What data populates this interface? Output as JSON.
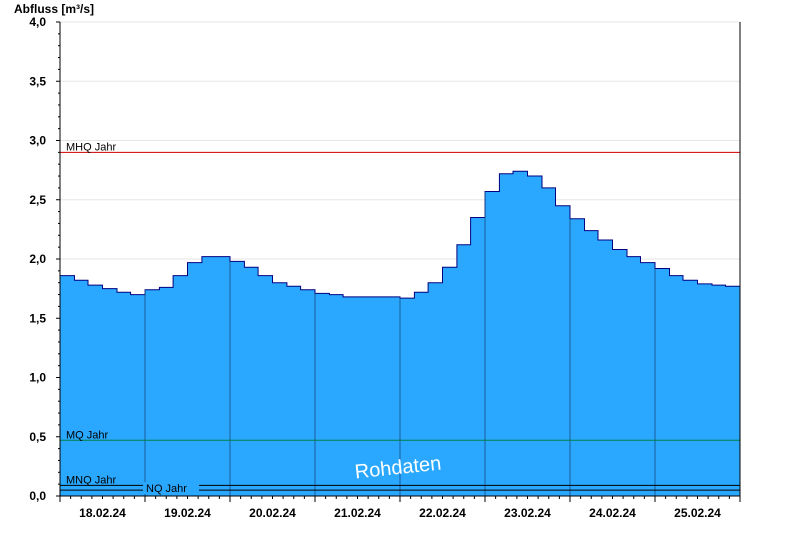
{
  "chart_data": {
    "type": "area",
    "ylabel": "Abfluss [m³/s]",
    "ylim": [
      0,
      4.0
    ],
    "yticks": [
      "0,0",
      "0,5",
      "1,0",
      "1,5",
      "2,0",
      "2,5",
      "3,0",
      "3,5",
      "4,0"
    ],
    "xlim": [
      0,
      8
    ],
    "xtick_labels": [
      "18.02.24",
      "19.02.24",
      "20.02.24",
      "21.02.24",
      "22.02.24",
      "23.02.24",
      "24.02.24",
      "25.02.24"
    ],
    "grid": true,
    "series": [
      {
        "color": "#2aa8ff",
        "x": [
          0,
          0.17,
          0.33,
          0.5,
          0.67,
          0.83,
          1.0,
          1.17,
          1.33,
          1.5,
          1.67,
          1.83,
          2.0,
          2.17,
          2.33,
          2.5,
          2.67,
          2.83,
          3.0,
          3.17,
          3.33,
          3.5,
          3.67,
          3.83,
          4.0,
          4.17,
          4.33,
          4.5,
          4.67,
          4.83,
          5.0,
          5.17,
          5.33,
          5.5,
          5.67,
          5.83,
          6.0,
          6.17,
          6.33,
          6.5,
          6.67,
          6.83,
          7.0,
          7.17,
          7.33,
          7.5,
          7.67,
          7.83,
          8.0
        ],
        "y": [
          1.86,
          1.82,
          1.78,
          1.75,
          1.72,
          1.7,
          1.74,
          1.76,
          1.86,
          1.97,
          2.02,
          2.02,
          1.98,
          1.93,
          1.86,
          1.8,
          1.77,
          1.74,
          1.71,
          1.7,
          1.68,
          1.68,
          1.68,
          1.68,
          1.67,
          1.72,
          1.8,
          1.93,
          2.12,
          2.35,
          2.57,
          2.72,
          2.74,
          2.7,
          2.6,
          2.45,
          2.34,
          2.24,
          2.16,
          2.08,
          2.02,
          1.97,
          1.92,
          1.86,
          1.82,
          1.79,
          1.78,
          1.77,
          1.75
        ]
      }
    ],
    "reference_lines": [
      {
        "label": "MHQ Jahr",
        "value": 2.9,
        "color": "#cc0000"
      },
      {
        "label": "MQ Jahr",
        "value": 0.47,
        "color": "#008040"
      },
      {
        "label": "MNQ Jahr",
        "value": 0.09,
        "color": "#000000"
      },
      {
        "label": "NQ Jahr",
        "value": 0.05,
        "color": "#000000"
      }
    ],
    "annotation": "Rohdaten"
  }
}
